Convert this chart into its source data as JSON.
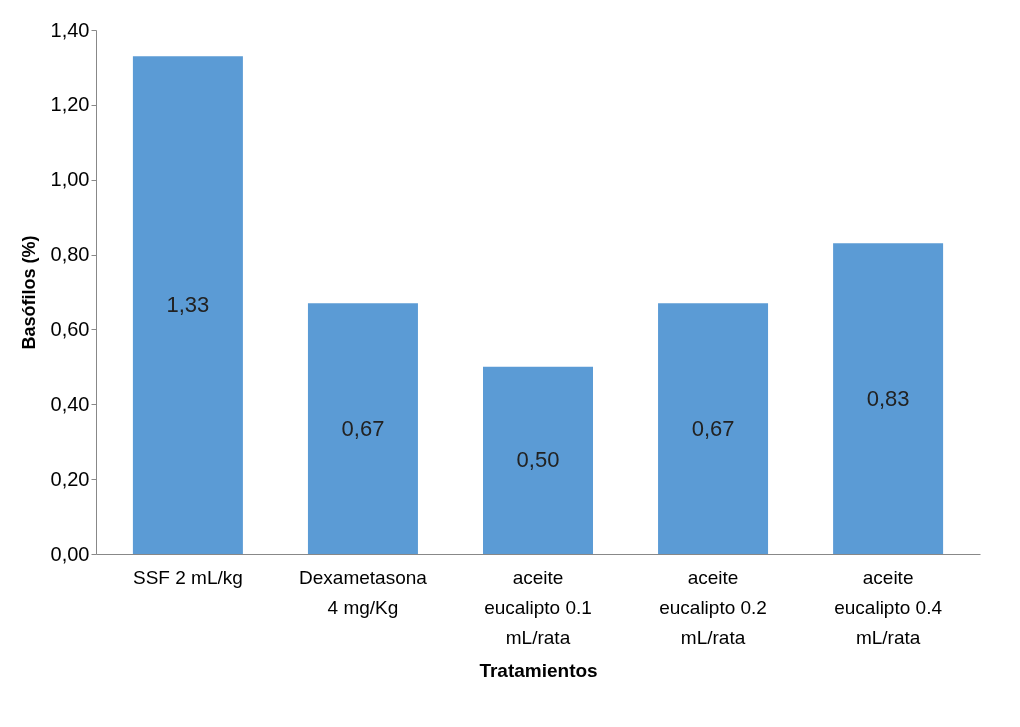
{
  "chart_data": {
    "type": "bar",
    "xlabel": "Tratamientos",
    "ylabel": "Basófilos (%)",
    "categories": [
      "SSF 2 mL/kg",
      "Dexametasona 4 mg/Kg",
      "aceite eucalipto 0.1 mL/rata",
      "aceite eucalipto 0.2 mL/rata",
      "aceite eucalipto 0.4 mL/rata"
    ],
    "values": [
      1.33,
      0.67,
      0.5,
      0.67,
      0.83
    ],
    "value_labels": [
      "1,33",
      "0,67",
      "0,50",
      "0,67",
      "0,83"
    ],
    "color": "#5b9bd5",
    "ylim": [
      0,
      1.4
    ],
    "yticks": [
      {
        "value": 0,
        "label": "0,00"
      },
      {
        "value": 0.2,
        "label": "0,20"
      },
      {
        "value": 0.4,
        "label": "0,40"
      },
      {
        "value": 0.6,
        "label": "0,60"
      },
      {
        "value": 0.8,
        "label": "0,80"
      },
      {
        "value": 1.0,
        "label": "1,00"
      },
      {
        "value": 1.2,
        "label": "1,20"
      },
      {
        "value": 1.4,
        "label": "1,40"
      }
    ],
    "grid": false
  }
}
